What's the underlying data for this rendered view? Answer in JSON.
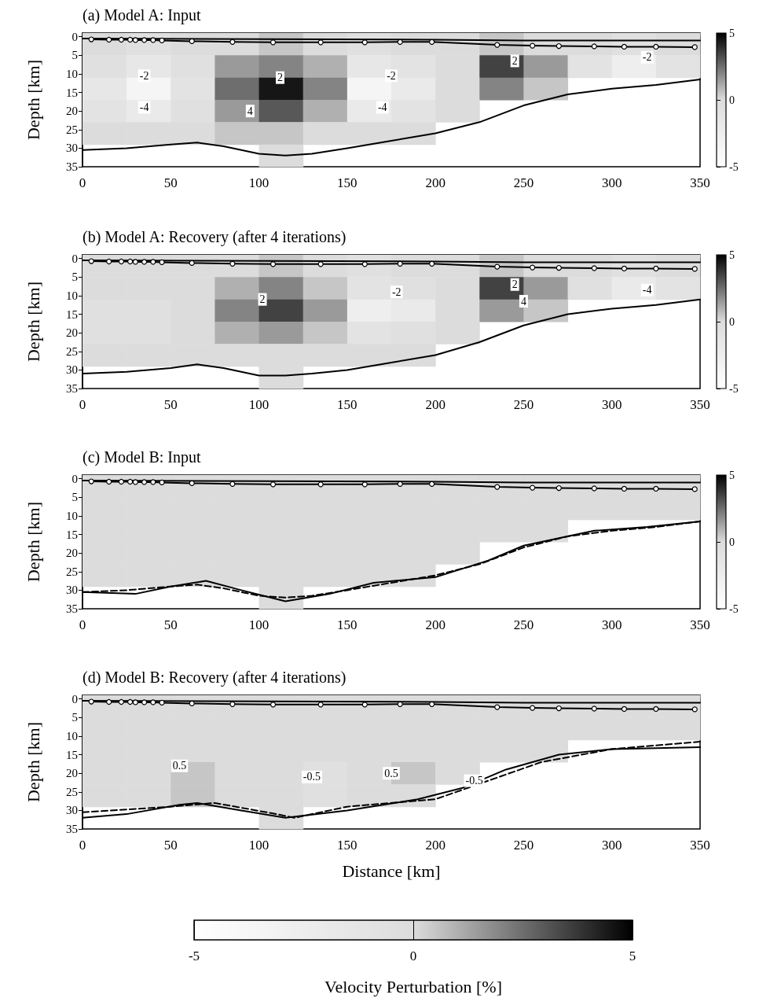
{
  "chart_data": [
    {
      "type": "heatmap",
      "title": "(a) Model A: Input",
      "ylabel": "Depth [km]",
      "x": [
        12.5,
        37.5,
        62.5,
        87.5,
        112.5,
        137.5,
        162.5,
        187.5,
        212.5,
        237.5,
        262.5,
        287.5,
        312.5,
        337.5
      ],
      "xlim": [
        0,
        350
      ],
      "xticks": [
        0,
        50,
        100,
        150,
        200,
        250,
        300,
        350
      ],
      "ylim": [
        35,
        -1
      ],
      "yticks": [
        0,
        5,
        10,
        15,
        20,
        25,
        30,
        35
      ],
      "clim": [
        -5,
        5
      ],
      "cticks": [
        -5,
        0,
        5
      ],
      "cells": [
        [
          0,
          -0.5,
          0,
          0,
          0.5,
          0,
          -0.5,
          0,
          0,
          0.5,
          0,
          0,
          -0.5,
          0
        ],
        [
          -0.5,
          -1.5,
          -0.5,
          1.5,
          2,
          1,
          -1.5,
          -1,
          0,
          3.5,
          1.5,
          -1,
          -2.5,
          -1
        ],
        [
          -1.5,
          -3.5,
          -1,
          2.5,
          4.5,
          2,
          -3.5,
          -2,
          0,
          2,
          0.5,
          null,
          null,
          null
        ],
        [
          -1,
          -2,
          -0.5,
          1.5,
          3,
          1,
          -2,
          -1,
          0,
          null,
          null,
          null,
          null,
          null
        ],
        [
          0,
          0,
          0,
          0.5,
          0.5,
          0,
          0,
          0,
          null,
          null,
          null,
          null,
          null,
          null
        ],
        [
          null,
          null,
          null,
          null,
          0,
          null,
          null,
          null,
          null,
          null,
          null,
          null,
          null,
          null
        ]
      ],
      "series": [
        {
          "type": "line",
          "color": "#000000",
          "x": [
            0,
            200,
            250,
            350
          ],
          "values": [
            0.5,
            0.8,
            1,
            1
          ]
        },
        {
          "type": "line",
          "color": "#000000",
          "marker": "circle",
          "x": [
            5,
            15,
            22,
            27,
            30,
            35,
            40,
            45,
            62,
            85,
            108,
            135,
            160,
            180,
            198,
            235,
            255,
            270,
            290,
            307,
            325,
            347
          ],
          "values": [
            0.7,
            0.8,
            0.8,
            0.8,
            0.9,
            0.9,
            0.9,
            1,
            1.2,
            1.4,
            1.5,
            1.5,
            1.5,
            1.4,
            1.4,
            2.2,
            2.4,
            2.5,
            2.6,
            2.7,
            2.7,
            2.8
          ]
        },
        {
          "type": "line",
          "color": "#000000",
          "x": [
            0,
            25,
            50,
            65,
            80,
            100,
            115,
            130,
            150,
            175,
            200,
            225,
            250,
            275,
            300,
            325,
            350
          ],
          "values": [
            30.5,
            30,
            29,
            28.5,
            29.5,
            31.5,
            32,
            31.5,
            30,
            28,
            26,
            23,
            18.5,
            15.5,
            14,
            13,
            11.5
          ]
        }
      ],
      "annotations": [
        "-2",
        "-4",
        "2",
        "4",
        "-2",
        "-4",
        "2",
        "-2"
      ]
    },
    {
      "type": "heatmap",
      "title": "(b) Model A: Recovery (after 4 iterations)",
      "ylabel": "Depth [km]",
      "x": [
        12.5,
        37.5,
        62.5,
        87.5,
        112.5,
        137.5,
        162.5,
        187.5,
        212.5,
        237.5,
        262.5,
        287.5,
        312.5,
        337.5
      ],
      "xlim": [
        0,
        350
      ],
      "xticks": [
        0,
        50,
        100,
        150,
        200,
        250,
        300,
        350
      ],
      "ylim": [
        35,
        -1
      ],
      "yticks": [
        0,
        5,
        10,
        15,
        20,
        25,
        30,
        35
      ],
      "clim": [
        -5,
        5
      ],
      "cticks": [
        -5,
        0,
        5
      ],
      "cells": [
        [
          0,
          0,
          0,
          0,
          0.5,
          0,
          -0.5,
          0,
          0,
          0.5,
          0,
          0,
          -0.5,
          0
        ],
        [
          0,
          0,
          0,
          1,
          2,
          0.5,
          -1,
          -0.5,
          0,
          3.5,
          1.5,
          -0.5,
          -2,
          -1
        ],
        [
          -0.5,
          -0.5,
          0,
          2,
          3.5,
          1.5,
          -2.5,
          -2,
          0,
          1.5,
          0.5,
          null,
          null,
          null
        ],
        [
          -0.5,
          -0.5,
          0,
          1,
          1.5,
          0.5,
          -1,
          -0.5,
          0,
          null,
          null,
          null,
          null,
          null
        ],
        [
          0,
          0,
          0,
          0,
          0,
          0,
          0,
          0,
          null,
          null,
          null,
          null,
          null,
          null
        ],
        [
          null,
          null,
          null,
          null,
          0,
          null,
          null,
          null,
          null,
          null,
          null,
          null,
          null,
          null
        ]
      ],
      "series": [
        {
          "type": "line",
          "color": "#000000",
          "x": [
            0,
            200,
            250,
            350
          ],
          "values": [
            0.5,
            0.8,
            1,
            1
          ]
        },
        {
          "type": "line",
          "color": "#000000",
          "marker": "circle",
          "x": [
            5,
            15,
            22,
            27,
            30,
            35,
            40,
            45,
            62,
            85,
            108,
            135,
            160,
            180,
            198,
            235,
            255,
            270,
            290,
            307,
            325,
            347
          ],
          "values": [
            0.7,
            0.8,
            0.8,
            0.8,
            0.9,
            0.9,
            0.9,
            1,
            1.2,
            1.4,
            1.5,
            1.5,
            1.5,
            1.4,
            1.4,
            2.2,
            2.4,
            2.5,
            2.6,
            2.7,
            2.7,
            2.8
          ]
        },
        {
          "type": "line",
          "color": "#000000",
          "x": [
            0,
            25,
            50,
            65,
            80,
            100,
            115,
            130,
            150,
            175,
            200,
            225,
            250,
            275,
            300,
            325,
            350
          ],
          "values": [
            31,
            30.5,
            29.5,
            28.5,
            29.5,
            31.5,
            31.5,
            31,
            30,
            28,
            26,
            22.5,
            18,
            15,
            13.5,
            12.5,
            11
          ]
        }
      ],
      "annotations": [
        "2",
        "-2",
        "2",
        "4",
        "-4"
      ]
    },
    {
      "type": "heatmap",
      "title": "(c) Model B: Input",
      "ylabel": "Depth [km]",
      "x": [
        12.5,
        37.5,
        62.5,
        87.5,
        112.5,
        137.5,
        162.5,
        187.5,
        212.5,
        237.5,
        262.5,
        287.5,
        312.5,
        337.5
      ],
      "xlim": [
        0,
        350
      ],
      "xticks": [
        0,
        50,
        100,
        150,
        200,
        250,
        300,
        350
      ],
      "ylim": [
        35,
        -1
      ],
      "yticks": [
        0,
        5,
        10,
        15,
        20,
        25,
        30,
        35
      ],
      "clim": [
        -5,
        5
      ],
      "cticks": [
        -5,
        0,
        5
      ],
      "cells": [
        [
          0,
          0,
          0,
          0,
          0,
          0,
          0,
          0,
          0,
          0,
          0,
          0,
          0,
          0
        ],
        [
          0,
          0,
          0,
          0,
          0,
          0,
          0,
          0,
          0,
          0,
          0,
          0,
          0,
          0
        ],
        [
          0,
          0,
          0,
          0,
          0,
          0,
          0,
          0,
          0,
          0,
          0,
          null,
          null,
          null
        ],
        [
          0,
          0,
          0,
          0,
          0,
          0,
          0,
          0,
          0,
          null,
          null,
          null,
          null,
          null
        ],
        [
          0,
          0,
          0,
          0,
          0,
          0,
          0,
          0,
          null,
          null,
          null,
          null,
          null,
          null
        ],
        [
          null,
          null,
          null,
          null,
          0,
          null,
          null,
          null,
          null,
          null,
          null,
          null,
          null,
          null
        ]
      ],
      "series": [
        {
          "type": "line",
          "color": "#000000",
          "x": [
            0,
            200,
            250,
            350
          ],
          "values": [
            0.5,
            0.8,
            1,
            1
          ]
        },
        {
          "type": "line",
          "color": "#000000",
          "marker": "circle",
          "x": [
            5,
            15,
            22,
            27,
            30,
            35,
            40,
            45,
            62,
            85,
            108,
            135,
            160,
            180,
            198,
            235,
            255,
            270,
            290,
            307,
            325,
            347
          ],
          "values": [
            0.7,
            0.8,
            0.8,
            0.8,
            0.9,
            0.9,
            0.9,
            1,
            1.2,
            1.4,
            1.5,
            1.5,
            1.5,
            1.4,
            1.4,
            2.2,
            2.4,
            2.5,
            2.6,
            2.7,
            2.7,
            2.8
          ]
        },
        {
          "type": "line",
          "color": "#000000",
          "x": [
            0,
            30,
            50,
            70,
            90,
            115,
            140,
            165,
            200,
            230,
            250,
            290,
            320,
            350
          ],
          "values": [
            30.5,
            31,
            29,
            27.5,
            30,
            33,
            31,
            28,
            26.5,
            22,
            18,
            14,
            13,
            11.5
          ]
        },
        {
          "type": "line",
          "color": "#000000",
          "line_style": "dashed",
          "x": [
            0,
            25,
            50,
            65,
            80,
            100,
            115,
            130,
            150,
            175,
            200,
            225,
            250,
            275,
            300,
            325,
            350
          ],
          "values": [
            30.5,
            30,
            29,
            28.5,
            29.5,
            31.5,
            32,
            31.5,
            30,
            28,
            26,
            23,
            18.5,
            15.5,
            14,
            13,
            11.5
          ]
        }
      ]
    },
    {
      "type": "heatmap",
      "title": "(d) Model B: Recovery (after 4 iterations)",
      "ylabel": "Depth [km]",
      "xlabel": "Distance [km]",
      "x": [
        12.5,
        37.5,
        62.5,
        87.5,
        112.5,
        137.5,
        162.5,
        187.5,
        212.5,
        237.5,
        262.5,
        287.5,
        312.5,
        337.5
      ],
      "xlim": [
        0,
        350
      ],
      "xticks": [
        0,
        50,
        100,
        150,
        200,
        250,
        300,
        350
      ],
      "ylim": [
        35,
        -1
      ],
      "yticks": [
        0,
        5,
        10,
        15,
        20,
        25,
        30,
        35
      ],
      "clim": [
        -5,
        5
      ],
      "cticks": [
        -5,
        0,
        5
      ],
      "clabel": "Velocity Perturbation [%]",
      "cells": [
        [
          0,
          0,
          0,
          0,
          0,
          0,
          0,
          0,
          0,
          0,
          0,
          0,
          0,
          0
        ],
        [
          0,
          0,
          0,
          0,
          0,
          0,
          0,
          0,
          0,
          0,
          0,
          0,
          0,
          0
        ],
        [
          0,
          0,
          0,
          0,
          0,
          0,
          0,
          0,
          0,
          0,
          0,
          null,
          null,
          null
        ],
        [
          0,
          0,
          0.5,
          0,
          0,
          -0.5,
          0,
          0.5,
          0,
          null,
          null,
          null,
          null,
          null
        ],
        [
          0,
          0,
          0.5,
          0,
          0,
          -0.5,
          0,
          0,
          null,
          null,
          null,
          null,
          null,
          null
        ],
        [
          null,
          null,
          null,
          null,
          0,
          null,
          null,
          null,
          null,
          null,
          null,
          null,
          null,
          null
        ]
      ],
      "series": [
        {
          "type": "line",
          "color": "#000000",
          "x": [
            0,
            200,
            250,
            350
          ],
          "values": [
            0.5,
            0.8,
            1,
            1
          ]
        },
        {
          "type": "line",
          "color": "#000000",
          "marker": "circle",
          "x": [
            5,
            15,
            22,
            27,
            30,
            35,
            40,
            45,
            62,
            85,
            108,
            135,
            160,
            180,
            198,
            235,
            255,
            270,
            290,
            307,
            325,
            347
          ],
          "values": [
            0.7,
            0.8,
            0.8,
            0.8,
            0.9,
            0.9,
            0.9,
            1,
            1.2,
            1.4,
            1.5,
            1.5,
            1.5,
            1.4,
            1.4,
            2.2,
            2.4,
            2.5,
            2.6,
            2.7,
            2.7,
            2.8
          ]
        },
        {
          "type": "line",
          "color": "#000000",
          "x": [
            0,
            25,
            55,
            65,
            90,
            115,
            150,
            190,
            215,
            240,
            270,
            300,
            350
          ],
          "values": [
            32,
            31,
            28.5,
            28,
            30,
            32,
            30,
            27,
            24,
            19,
            15,
            13.5,
            13
          ]
        },
        {
          "type": "line",
          "color": "#000000",
          "line_style": "dashed",
          "x": [
            0,
            50,
            75,
            110,
            120,
            150,
            200,
            230,
            260,
            300,
            350
          ],
          "values": [
            30.5,
            29,
            28,
            31,
            32,
            29,
            27,
            22,
            17,
            13.5,
            11.5
          ]
        }
      ],
      "annotations": [
        "0.5",
        "-0.5",
        "0.5",
        "-0.5"
      ]
    }
  ]
}
